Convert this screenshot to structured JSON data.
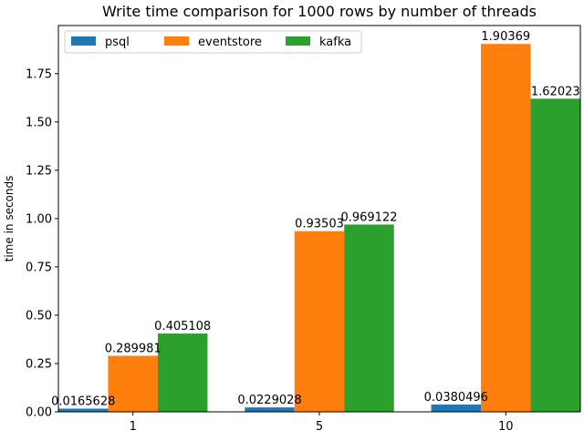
{
  "chart_data": {
    "type": "bar",
    "title": "Write time comparison for 1000 rows by number of threads",
    "xlabel": "",
    "ylabel": "time in seconds",
    "categories": [
      "1",
      "5",
      "10"
    ],
    "series": [
      {
        "name": "psql",
        "color": "#1f77b4",
        "values": [
          0.0165628,
          0.0229028,
          0.0380496
        ],
        "labels": [
          "0.0165628",
          "0.0229028",
          "0.0380496"
        ]
      },
      {
        "name": "eventstore",
        "color": "#ff7f0e",
        "values": [
          0.289981,
          0.93503,
          1.90369
        ],
        "labels": [
          "0.289981",
          "0.93503",
          "1.90369"
        ]
      },
      {
        "name": "kafka",
        "color": "#2ca02c",
        "values": [
          0.405108,
          0.969122,
          1.62023
        ],
        "labels": [
          "0.405108",
          "0.969122",
          "1.62023"
        ]
      }
    ],
    "ylim": [
      0,
      1.9989
    ],
    "yticks": [
      0.0,
      0.25,
      0.5,
      0.75,
      1.0,
      1.25,
      1.5,
      1.75
    ],
    "ytick_labels": [
      "0.00",
      "0.25",
      "0.50",
      "0.75",
      "1.00",
      "1.25",
      "1.50",
      "1.75"
    ],
    "grid": false,
    "legend_position": "top-left",
    "legend_columns": 3
  }
}
